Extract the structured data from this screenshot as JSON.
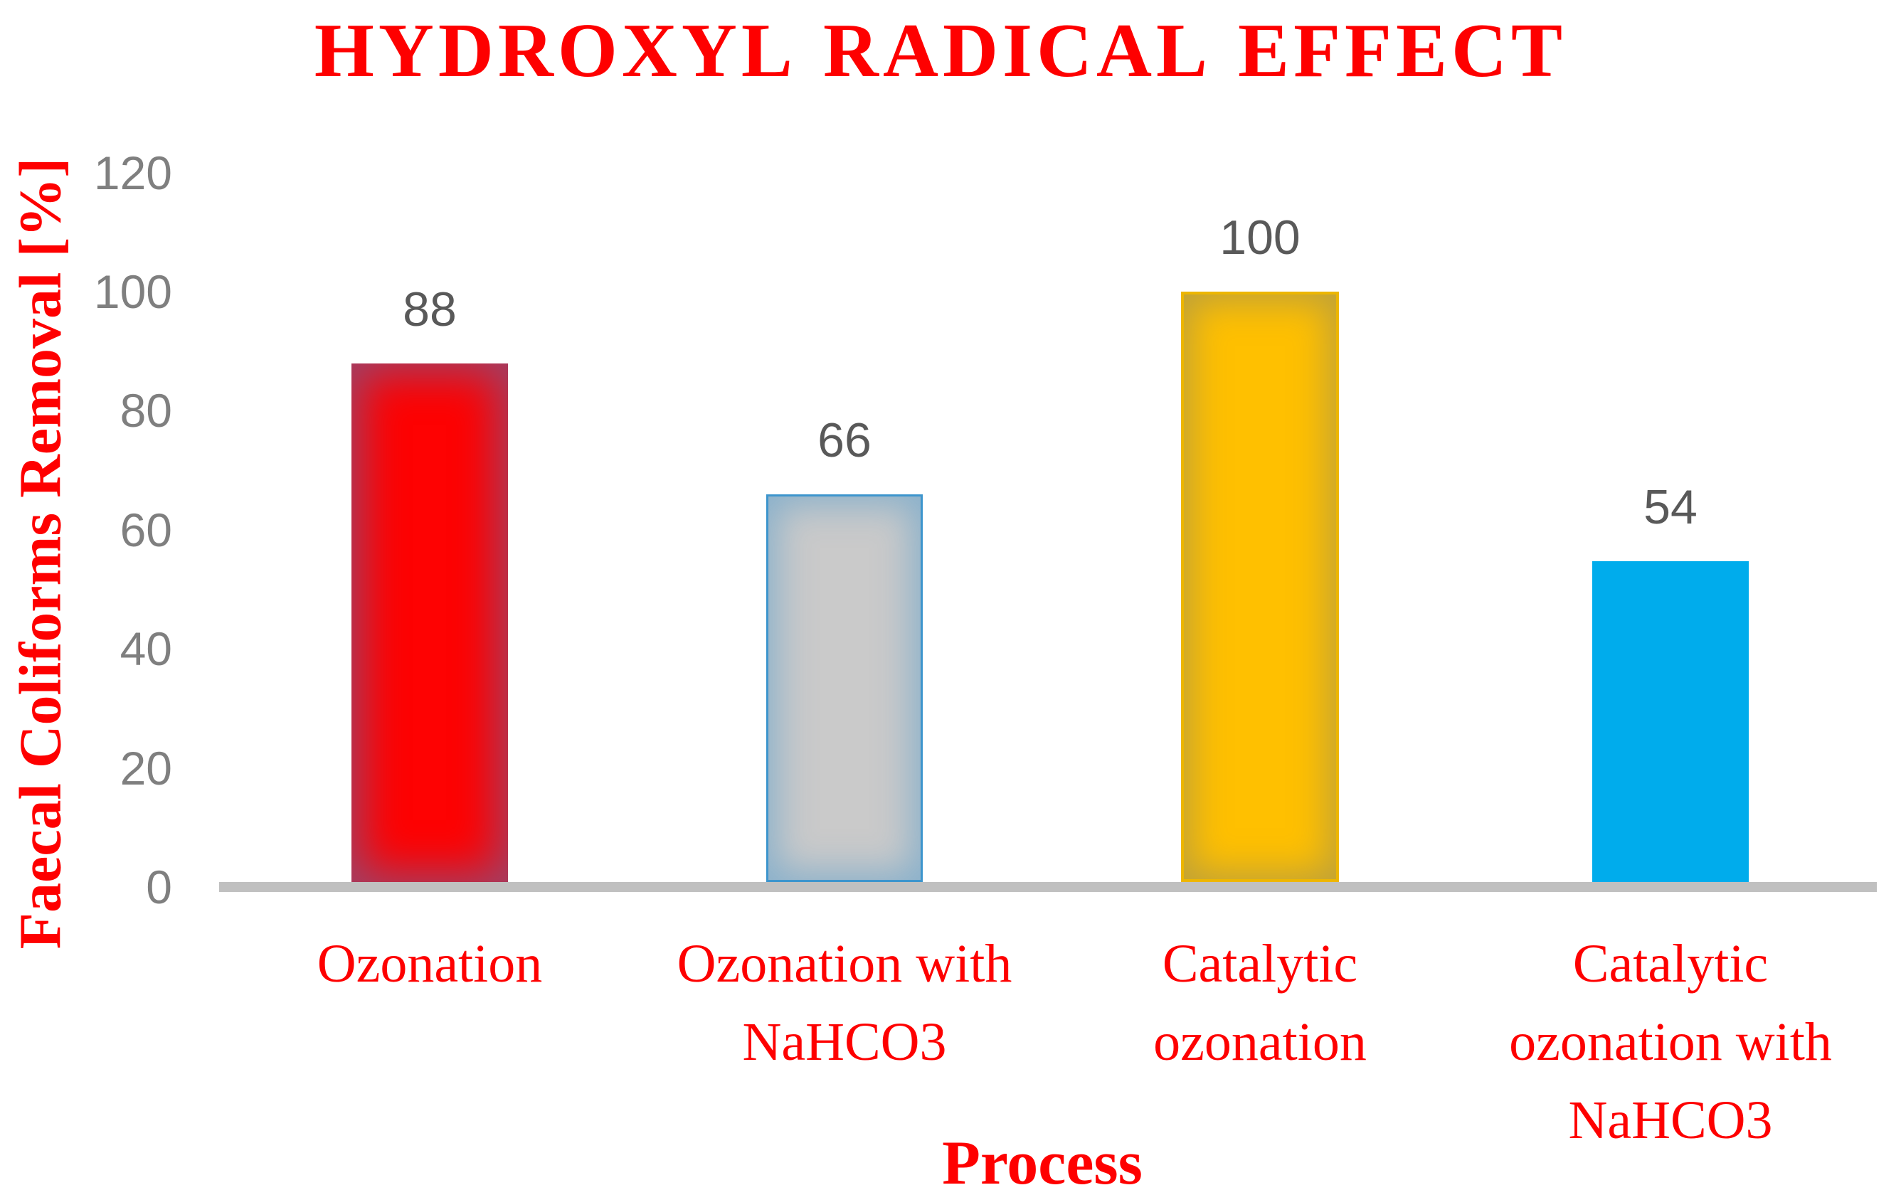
{
  "title": "HYDROXYL RADICAL EFFECT",
  "y_axis": {
    "label": "Faecal Coliforms Removal [%]",
    "ticks": [
      "120",
      "100",
      "80",
      "60",
      "40",
      "20",
      "0"
    ]
  },
  "x_axis": {
    "label": "Process"
  },
  "chart_data": {
    "type": "bar",
    "title": "HYDROXYL RADICAL EFFECT",
    "categories": [
      "Ozonation",
      "Ozonation with NaHCO3",
      "Catalytic ozonation",
      "Catalytic ozonation with NaHCO3"
    ],
    "values": [
      88,
      66,
      100,
      54
    ],
    "xlabel": "Process",
    "ylabel": "Faecal Coliforms Removal [%]",
    "ylim": [
      0,
      120
    ],
    "grid": "off",
    "legend": "none",
    "data_labels_shown": true
  },
  "colors": {
    "accent_red": "#fe0000",
    "tick_gray": "#7f7f7f",
    "data_label_gray": "#595959",
    "axis_line_gray": "#c0c0c0",
    "bar_fills": [
      "#fe0202",
      "#cacaca",
      "#ffc000",
      "#00acec"
    ],
    "bar_edge_glows": [
      "#6468a5",
      "#3d95cd",
      "#edb600",
      "none"
    ]
  }
}
